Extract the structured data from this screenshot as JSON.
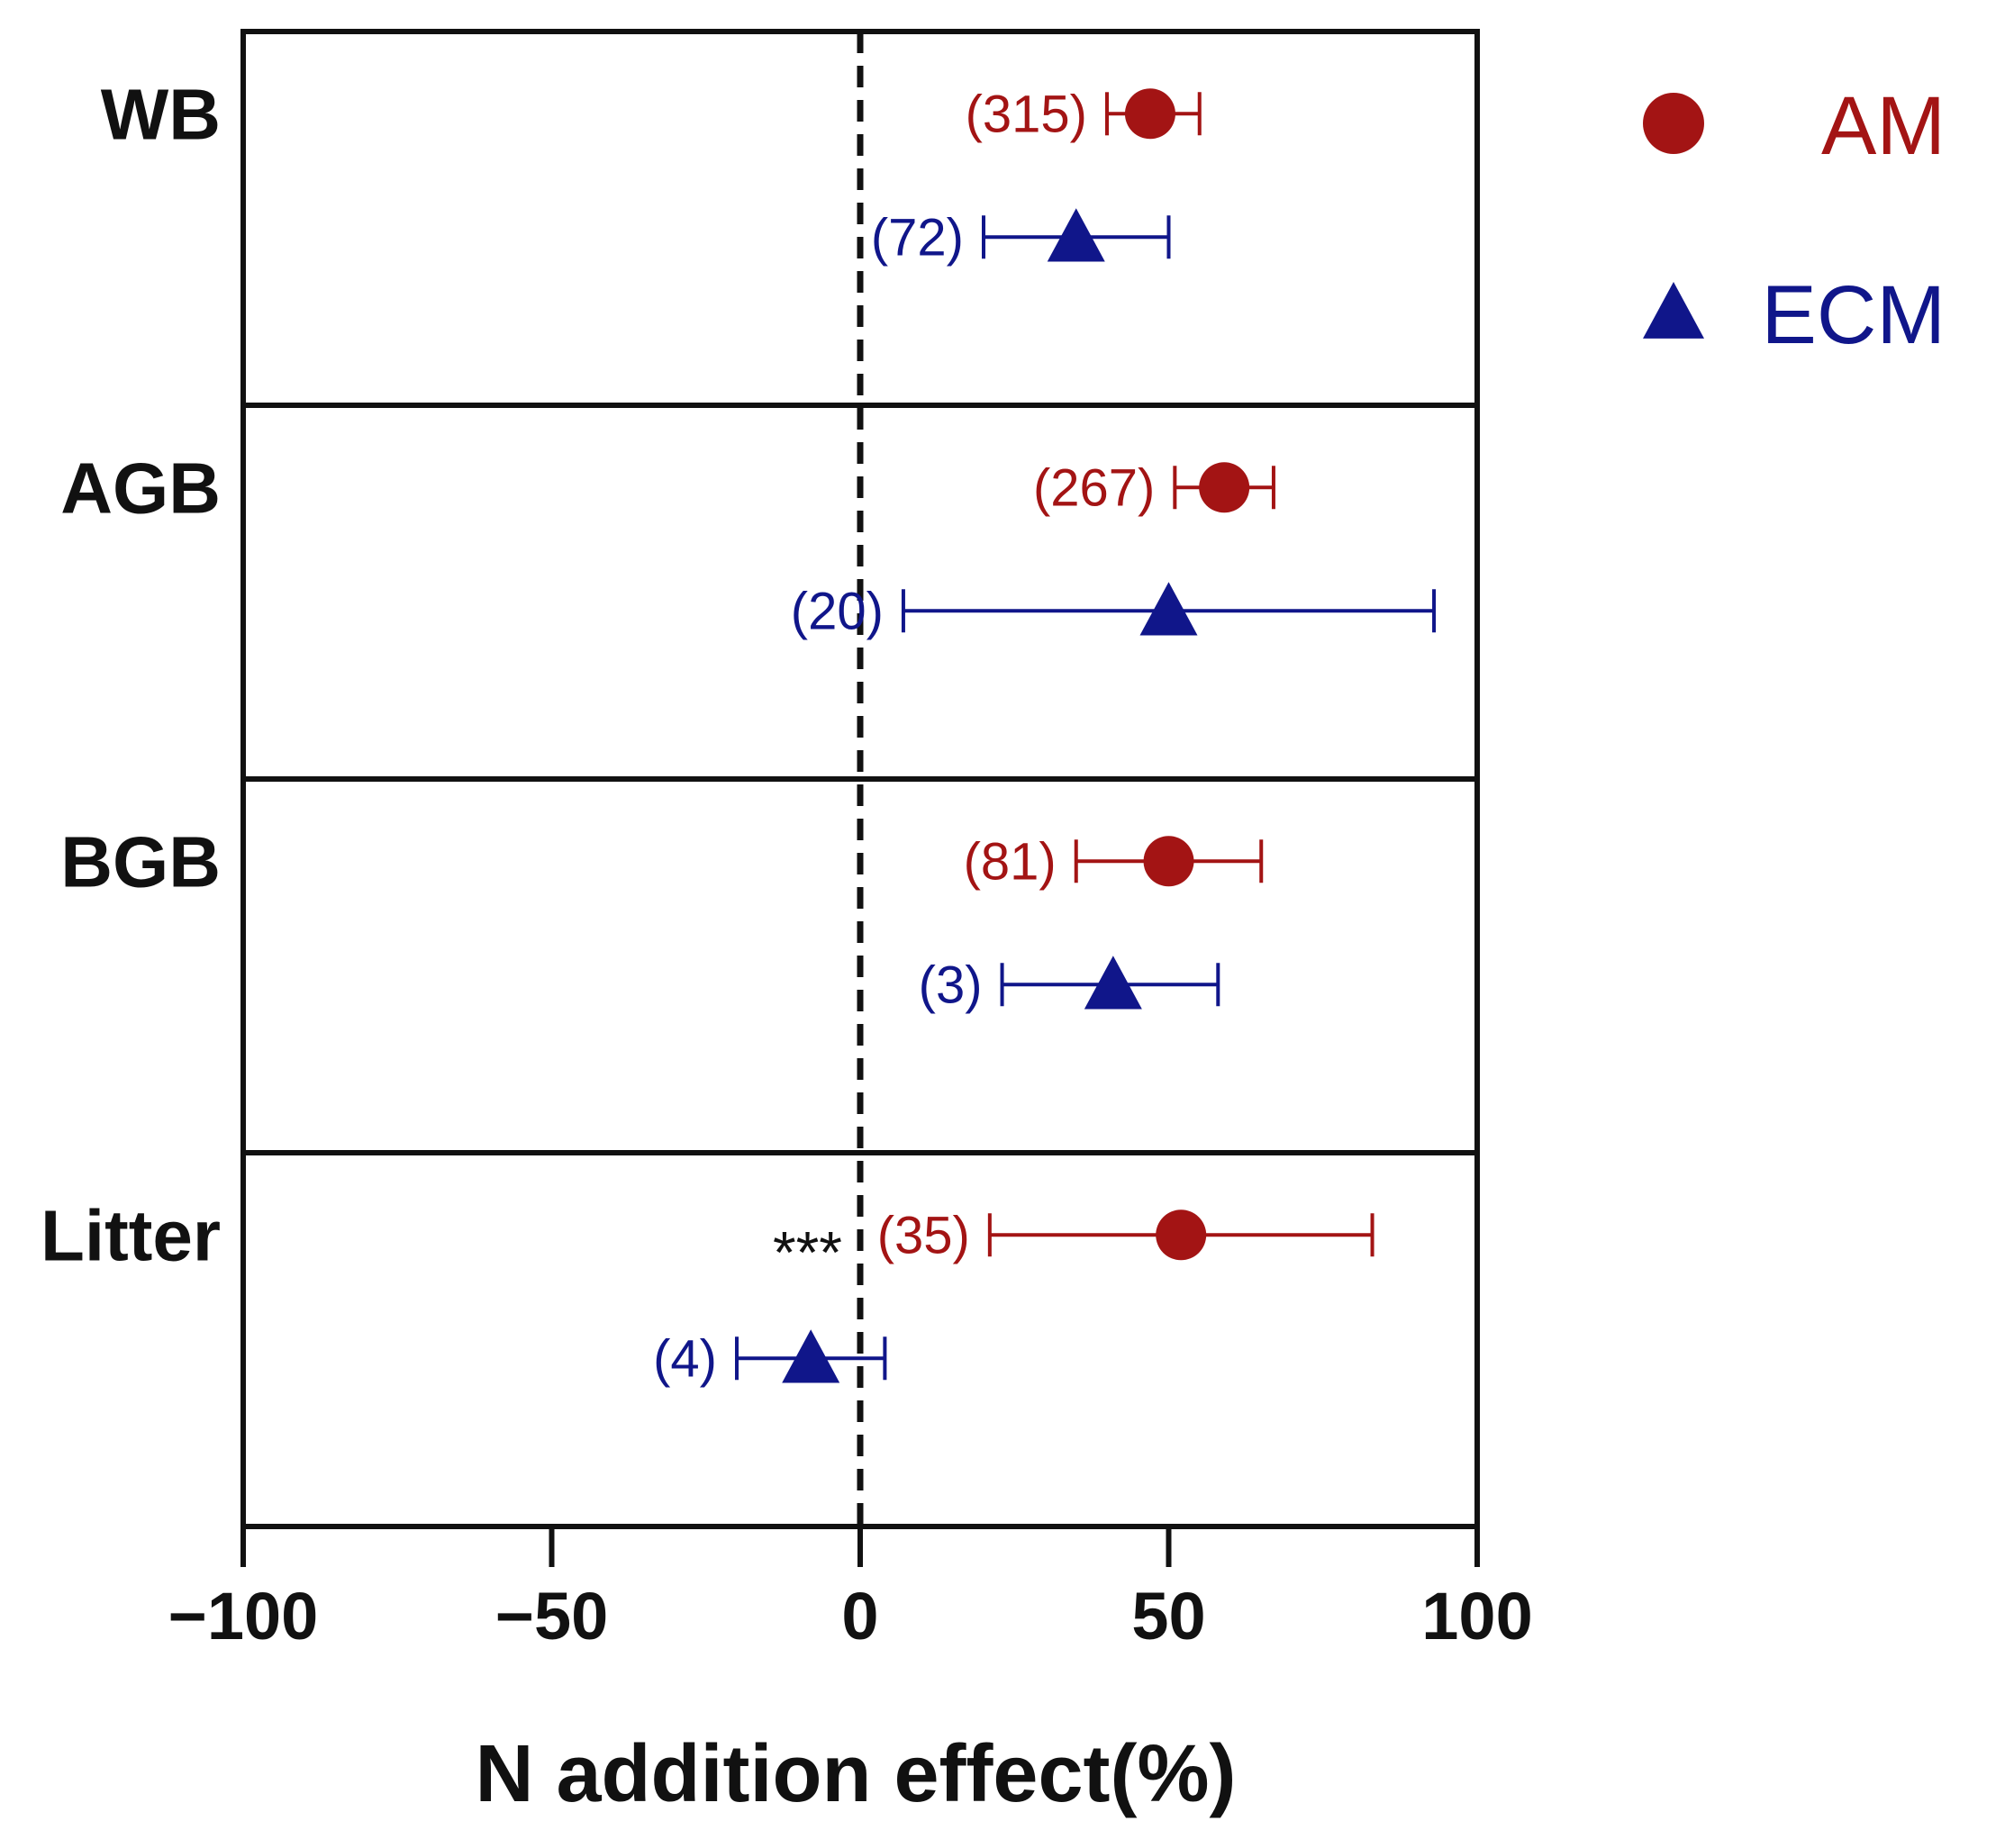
{
  "chart_data": {
    "type": "forest",
    "xlabel": "N addition effect(%)",
    "xlim": [
      -100,
      100
    ],
    "xticks": [
      -100,
      -50,
      0,
      50,
      100
    ],
    "xtick_labels": [
      "−100",
      "−50",
      "0",
      "50",
      "100"
    ],
    "reference_line": 0,
    "colors": {
      "AM": "#a31414",
      "ECM": "#10168a"
    },
    "legend": [
      {
        "name": "AM",
        "marker": "circle"
      },
      {
        "name": "ECM",
        "marker": "triangle"
      }
    ],
    "groups": [
      {
        "label": "WB",
        "points": [
          {
            "series": "AM",
            "mean": 47,
            "ci": [
              40,
              55
            ],
            "n_label": "(315)"
          },
          {
            "series": "ECM",
            "mean": 35,
            "ci": [
              20,
              50
            ],
            "n_label": "(72)"
          }
        ]
      },
      {
        "label": "AGB",
        "points": [
          {
            "series": "AM",
            "mean": 59,
            "ci": [
              51,
              67
            ],
            "n_label": "(267)"
          },
          {
            "series": "ECM",
            "mean": 50,
            "ci": [
              7,
              93
            ],
            "n_label": "(20)"
          }
        ]
      },
      {
        "label": "BGB",
        "points": [
          {
            "series": "AM",
            "mean": 50,
            "ci": [
              35,
              65
            ],
            "n_label": "(81)"
          },
          {
            "series": "ECM",
            "mean": 41,
            "ci": [
              23,
              58
            ],
            "n_label": "(3)"
          }
        ]
      },
      {
        "label": "Litter",
        "significance": "***",
        "points": [
          {
            "series": "AM",
            "mean": 52,
            "ci": [
              21,
              83
            ],
            "n_label": "(35)"
          },
          {
            "series": "ECM",
            "mean": -8,
            "ci": [
              -20,
              4
            ],
            "n_label": "(4)"
          }
        ]
      }
    ]
  }
}
